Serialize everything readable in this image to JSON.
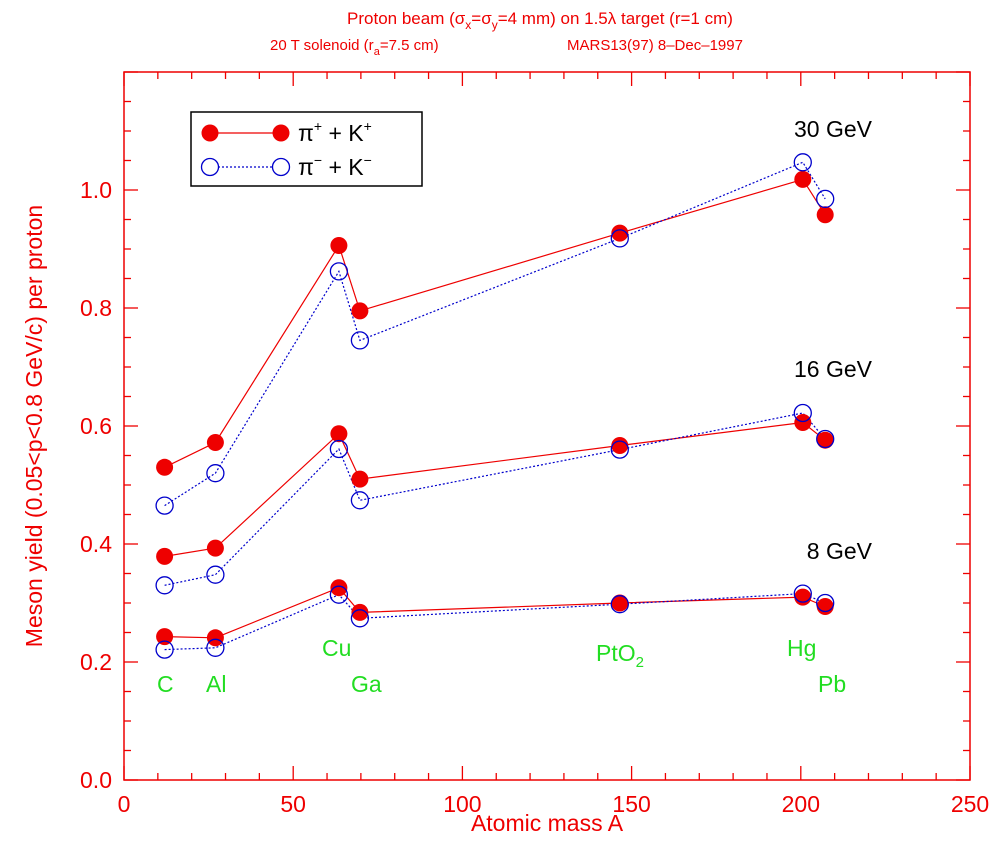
{
  "chart_data": {
    "type": "line",
    "title_line1": "Proton beam (σx=σy=4 mm) on 1.5λ target (r=1 cm)",
    "title_line2": "20 T solenoid (ra=7.5 cm)      MARS13(97)   8–Dec–1997",
    "xlabel": "Atomic mass A",
    "ylabel": "Meson yield (0.05<p<0.8 GeV/c) per proton",
    "xlim": [
      0,
      250
    ],
    "ylim": [
      0,
      1.2
    ],
    "xticks": [
      0,
      50,
      100,
      150,
      200,
      250
    ],
    "xtick_labels": [
      "0",
      "50",
      "100",
      "150",
      "200",
      "250"
    ],
    "yticks": [
      0,
      0.2,
      0.4,
      0.6,
      0.8,
      1.0
    ],
    "ytick_labels": [
      "0.0",
      "0.2",
      "0.4",
      "0.6",
      "0.8",
      "1.0"
    ],
    "grid": false,
    "legend_position": "top-left",
    "legend": [
      {
        "label": "π⁺ + K⁺",
        "marker": "filled-circle",
        "line": "solid",
        "color": "#ee0000"
      },
      {
        "label": "π⁻ + K⁻",
        "marker": "open-circle",
        "line": "dotted",
        "color": "#0000cc"
      }
    ],
    "x": [
      12,
      27,
      63.5,
      69.7,
      146.5,
      200.6,
      207.2
    ],
    "series": [
      {
        "energy": "30 GeV",
        "name": "π⁺ + K⁺",
        "color": "#ee0000",
        "style": "solid",
        "values": [
          0.53,
          0.572,
          0.906,
          0.795,
          0.927,
          1.018,
          0.958
        ]
      },
      {
        "energy": "30 GeV",
        "name": "π⁻ + K⁻",
        "color": "#0000cc",
        "style": "dotted",
        "values": [
          0.465,
          0.52,
          0.862,
          0.745,
          0.918,
          1.047,
          0.985
        ]
      },
      {
        "energy": "16 GeV",
        "name": "π⁺ + K⁺",
        "color": "#ee0000",
        "style": "solid",
        "values": [
          0.379,
          0.393,
          0.587,
          0.51,
          0.567,
          0.606,
          0.576
        ]
      },
      {
        "energy": "16 GeV",
        "name": "π⁻ + K⁻",
        "color": "#0000cc",
        "style": "dotted",
        "values": [
          0.33,
          0.348,
          0.561,
          0.474,
          0.56,
          0.622,
          0.578
        ]
      },
      {
        "energy": "8 GeV",
        "name": "π⁺ + K⁺",
        "color": "#ee0000",
        "style": "solid",
        "values": [
          0.243,
          0.241,
          0.326,
          0.284,
          0.3,
          0.31,
          0.294
        ]
      },
      {
        "energy": "8 GeV",
        "name": "π⁻ + K⁻",
        "color": "#0000cc",
        "style": "dotted",
        "values": [
          0.221,
          0.224,
          0.314,
          0.274,
          0.298,
          0.316,
          0.3
        ]
      }
    ],
    "energy_labels": [
      "30 GeV",
      "16 GeV",
      "8 GeV"
    ],
    "element_labels": [
      {
        "text": "C",
        "x": 12
      },
      {
        "text": "Al",
        "x": 27
      },
      {
        "text": "Cu",
        "x": 63.5
      },
      {
        "text": "Ga",
        "x": 69.7
      },
      {
        "text": "PtO2",
        "x": 146.5
      },
      {
        "text": "Hg",
        "x": 200.6
      },
      {
        "text": "Pb",
        "x": 207.2
      }
    ]
  }
}
